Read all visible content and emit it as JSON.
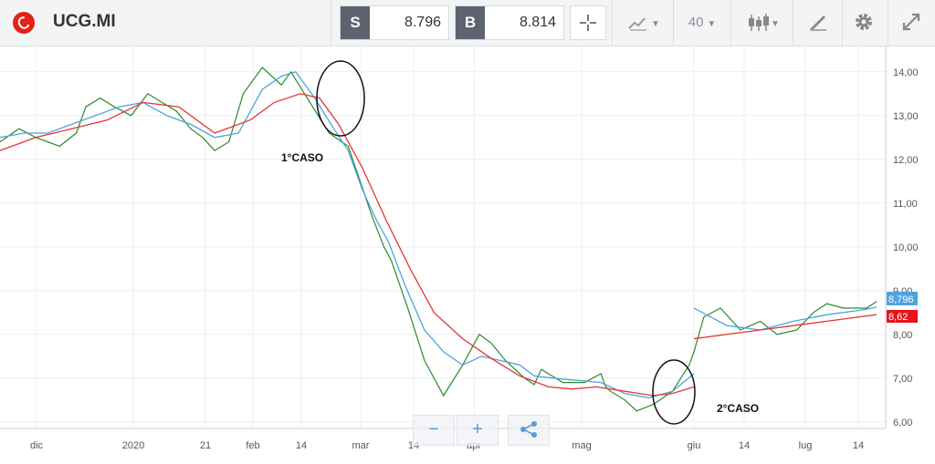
{
  "header": {
    "symbol": "UCG.MI",
    "sell_tag": "S",
    "sell_price": "8.796",
    "buy_tag": "B",
    "buy_price": "8.814",
    "interval": "40",
    "brand_color": "#e2231a"
  },
  "icons": {
    "crosshair": "crosshair-icon",
    "compare": "compare-icon",
    "candles": "candlestick-icon",
    "draw": "draw-icon",
    "settings": "gear-icon",
    "fullscreen": "expand-icon"
  },
  "zoom": {
    "minus": "−",
    "plus": "+",
    "share": "share-icon"
  },
  "chart_data": {
    "type": "line",
    "title": "",
    "y_ticks": [
      "14,00",
      "13,00",
      "12,00",
      "11,00",
      "10,00",
      "9,00",
      "8,00",
      "7,00",
      "6,00"
    ],
    "x_ticks": [
      "dic",
      "2020",
      "21",
      "feb",
      "14",
      "mar",
      "14",
      "apr",
      "mag",
      "giu",
      "14",
      "lug",
      "14"
    ],
    "ylim": [
      5.85,
      14.6
    ],
    "grid": true,
    "price_labels": {
      "last": "8,796",
      "ma": "8,62"
    },
    "annotations": [
      "1°CASO",
      "2°CASO"
    ],
    "series": [
      {
        "color": "#2b8a2b",
        "x": [
          0,
          8,
          15,
          25,
          32,
          36,
          42,
          48,
          55,
          62,
          68,
          74,
          80,
          85,
          90,
          96,
          102,
          110,
          118,
          122,
          130,
          138,
          146,
          151,
          156,
          161,
          164,
          171,
          178,
          186,
          194,
          201,
          206,
          212,
          220,
          224,
          227,
          236,
          245,
          252,
          254,
          256,
          262,
          267,
          274,
          282,
          289,
          291
        ],
        "y": [
          12.4,
          12.7,
          12.5,
          12.3,
          12.6,
          13.2,
          13.4,
          13.2,
          13.0,
          13.5,
          13.3,
          13.1,
          12.7,
          12.5,
          12.2,
          12.4,
          13.5,
          14.1,
          13.7,
          14.0,
          13.3,
          12.6,
          12.3,
          11.5,
          10.7,
          10.0,
          9.7,
          8.6,
          7.4,
          6.6,
          7.3,
          8.0,
          7.8,
          7.4,
          7.0,
          6.85,
          7.2,
          6.9,
          6.9,
          7.1,
          6.8,
          6.7,
          6.5,
          6.25,
          6.4,
          6.7,
          7.3,
          7.6
        ]
      },
      {
        "color": "#2b8a2b",
        "x": [
          0,
          3,
          8,
          14,
          20,
          25,
          31,
          36,
          40,
          45,
          52,
          55
        ],
        "y": [
          7.6,
          8.4,
          8.6,
          8.1,
          8.3,
          8.0,
          8.1,
          8.5,
          8.7,
          8.6,
          8.6,
          8.75
        ]
      },
      {
        "color": "#4da3df",
        "x": [
          0,
          10,
          20,
          30,
          40,
          50,
          60,
          70,
          80,
          90,
          100,
          110,
          118,
          124,
          132,
          140,
          146,
          152,
          158,
          163,
          170,
          178,
          186,
          194,
          202,
          210,
          218,
          224,
          232,
          242,
          252,
          262,
          272,
          282,
          291
        ],
        "y": [
          12.5,
          12.6,
          12.6,
          12.8,
          13.0,
          13.2,
          13.3,
          13.0,
          12.8,
          12.5,
          12.6,
          13.6,
          13.9,
          14.0,
          13.4,
          12.7,
          12.2,
          11.3,
          10.6,
          10.1,
          9.1,
          8.1,
          7.6,
          7.3,
          7.5,
          7.4,
          7.3,
          7.05,
          7.0,
          6.95,
          6.9,
          6.65,
          6.55,
          6.7,
          7.1
        ]
      },
      {
        "color": "#4da3df",
        "x": [
          0,
          10,
          20,
          30,
          40,
          50,
          55
        ],
        "y": [
          8.6,
          8.2,
          8.1,
          8.3,
          8.45,
          8.55,
          8.62
        ]
      },
      {
        "color": "#e53535",
        "x": [
          0,
          15,
          30,
          45,
          60,
          75,
          90,
          105,
          115,
          126,
          134,
          142,
          152,
          162,
          172,
          182,
          194,
          206,
          218,
          230,
          240,
          250,
          262,
          274,
          282,
          291
        ],
        "y": [
          12.2,
          12.5,
          12.7,
          12.9,
          13.3,
          13.2,
          12.6,
          12.9,
          13.3,
          13.5,
          13.4,
          12.8,
          11.8,
          10.6,
          9.5,
          8.5,
          7.9,
          7.45,
          7.05,
          6.8,
          6.75,
          6.8,
          6.7,
          6.6,
          6.65,
          6.8
        ]
      },
      {
        "color": "#e53535",
        "x": [
          0,
          15,
          30,
          45,
          55
        ],
        "y": [
          7.9,
          8.05,
          8.2,
          8.35,
          8.45
        ]
      }
    ]
  }
}
